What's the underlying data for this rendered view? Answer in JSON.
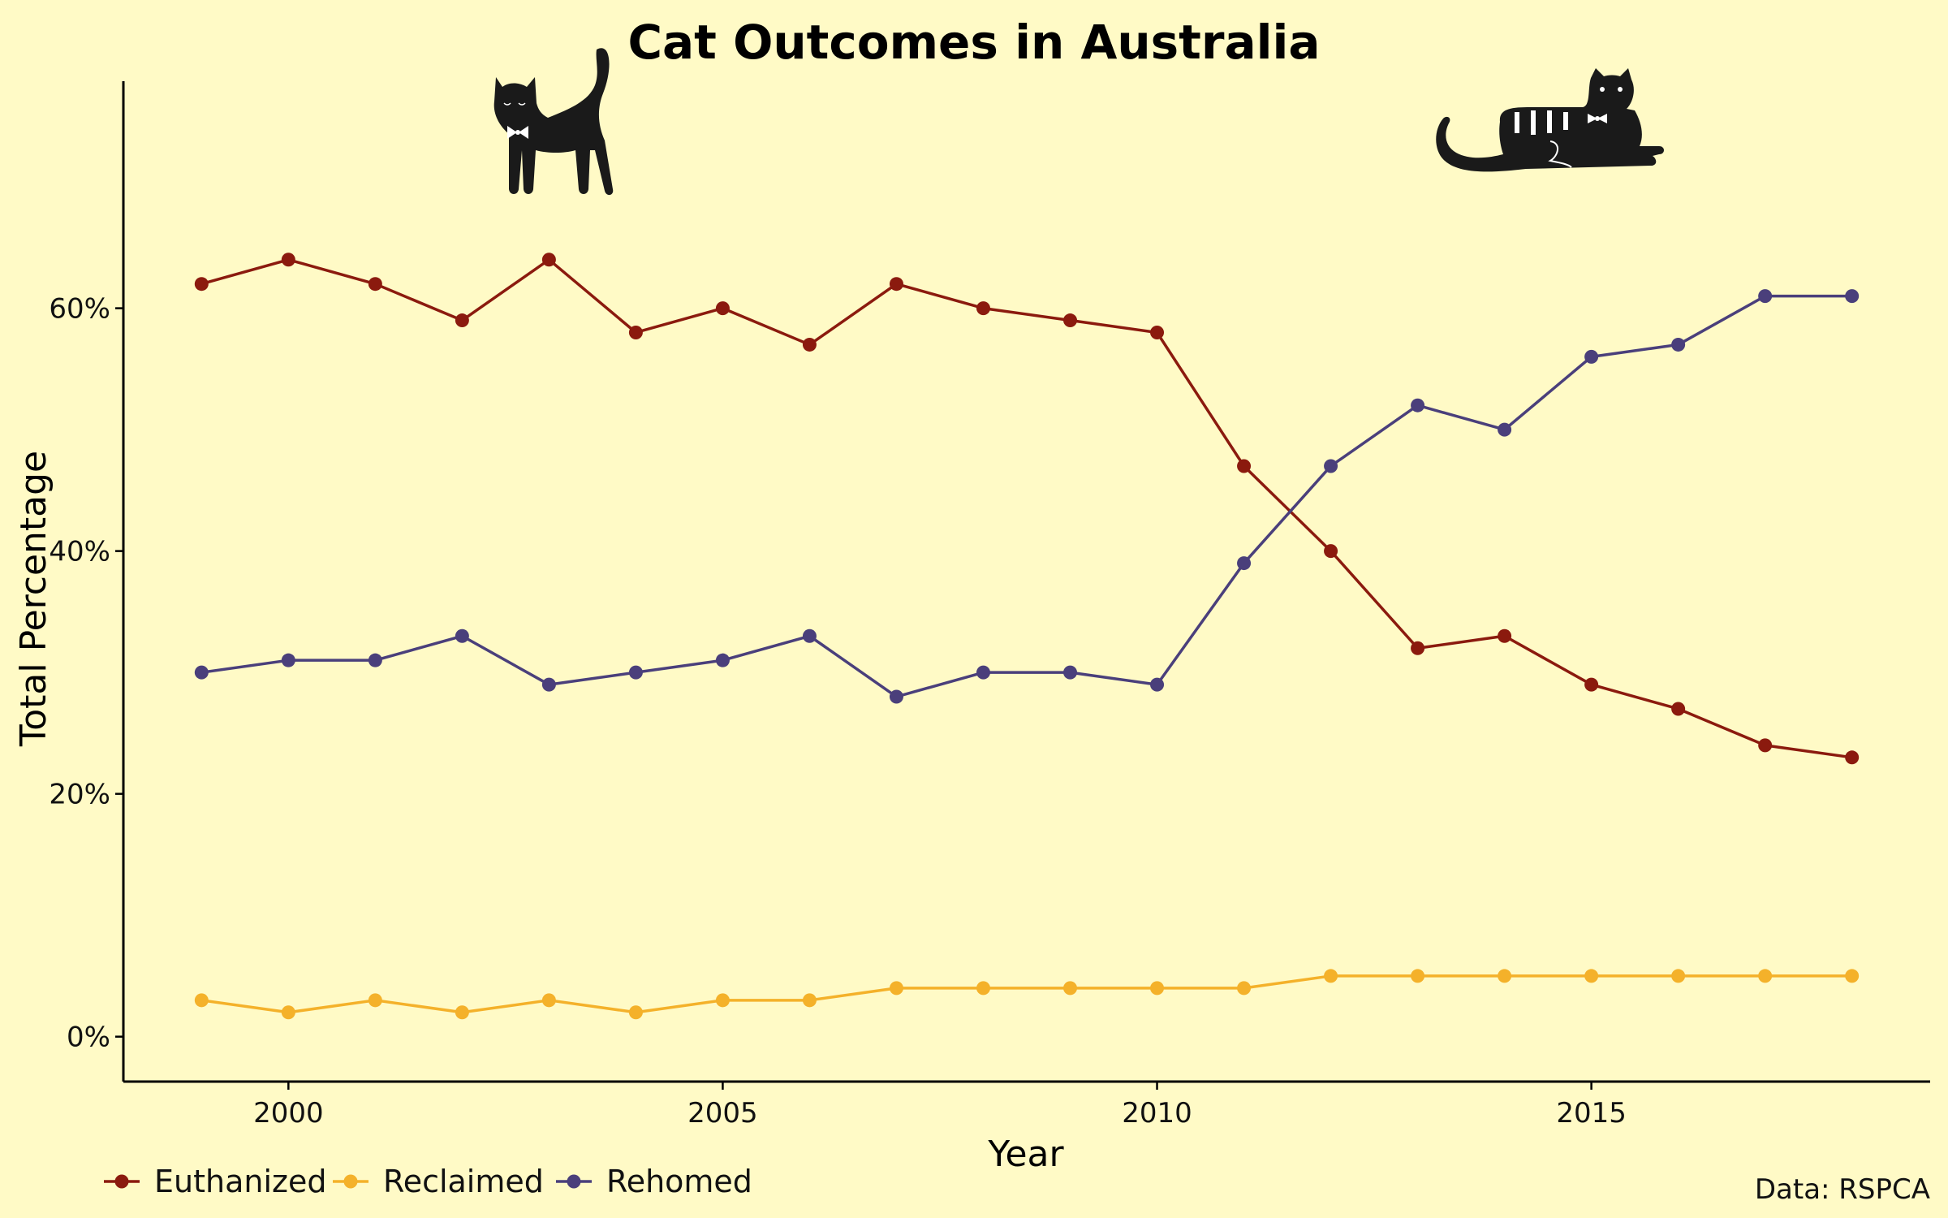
{
  "chart_data": {
    "type": "line",
    "title": "Cat Outcomes in Australia",
    "xlabel": "Year",
    "ylabel": "Total Percentage",
    "caption": "Data: RSPCA",
    "x": [
      1999,
      2000,
      2001,
      2002,
      2003,
      2004,
      2005,
      2006,
      2007,
      2008,
      2009,
      2010,
      2011,
      2012,
      2013,
      2014,
      2015,
      2016,
      2017,
      2018
    ],
    "xlim": [
      1998.1,
      2018.9
    ],
    "ylim": [
      -3.7,
      78.7
    ],
    "x_ticks": [
      2000,
      2005,
      2010,
      2015
    ],
    "x_tick_labels": [
      "2000",
      "2005",
      "2010",
      "2015"
    ],
    "y_ticks": [
      0,
      20,
      40,
      60
    ],
    "y_tick_labels": [
      "0%",
      "20%",
      "40%",
      "60%"
    ],
    "grid": false,
    "legend_position": "bottom-left",
    "series": [
      {
        "name": "Euthanized",
        "color": "#8b1a0e",
        "values": [
          62,
          64,
          62,
          59,
          64,
          58,
          60,
          57,
          62,
          60,
          59,
          58,
          47,
          40,
          32,
          33,
          29,
          27,
          24,
          23
        ]
      },
      {
        "name": "Reclaimed",
        "color": "#f4b12a",
        "values": [
          3,
          2,
          3,
          2,
          3,
          2,
          3,
          3,
          4,
          4,
          4,
          4,
          4,
          5,
          5,
          5,
          5,
          5,
          5,
          5
        ]
      },
      {
        "name": "Rehomed",
        "color": "#4a3f7b",
        "values": [
          30,
          31,
          31,
          33,
          29,
          30,
          31,
          33,
          28,
          30,
          30,
          29,
          39,
          47,
          52,
          50,
          56,
          57,
          61,
          61
        ]
      }
    ],
    "decorations": [
      "standing-cat-icon",
      "lying-cat-icon"
    ]
  }
}
